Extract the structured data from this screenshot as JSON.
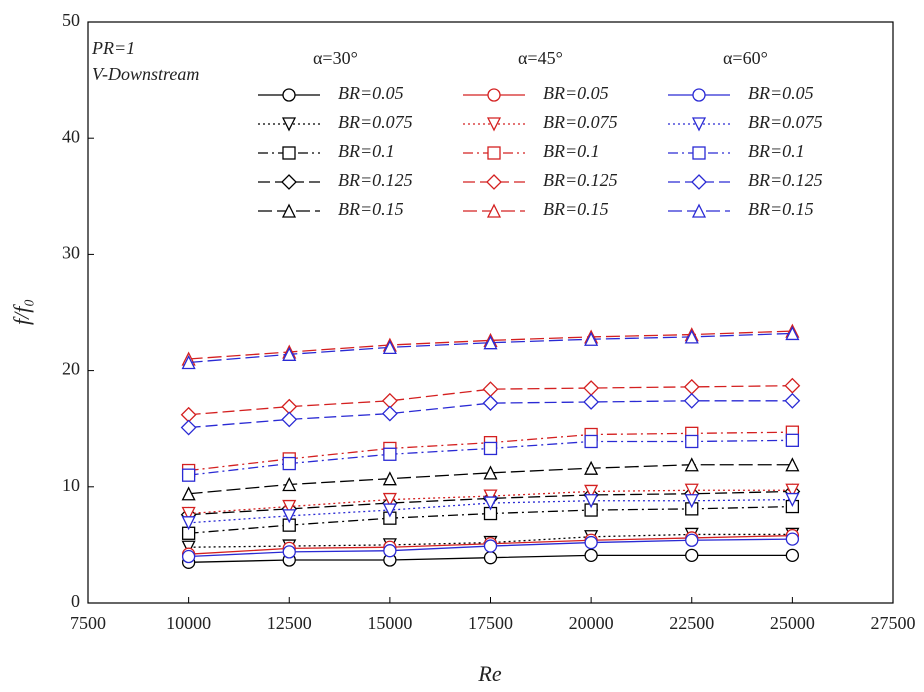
{
  "chart_data": {
    "type": "line",
    "xlabel": "Re",
    "ylabel": "f/f₀",
    "annotations": [
      "PR=1",
      "V-Downstream"
    ],
    "legend_groups": [
      "α=30°",
      "α=45°",
      "α=60°"
    ],
    "x": [
      10000,
      12500,
      15000,
      17500,
      20000,
      22500,
      25000
    ],
    "xlim": [
      7500,
      27500
    ],
    "xticks": [
      7500,
      10000,
      12500,
      15000,
      17500,
      20000,
      22500,
      25000,
      27500
    ],
    "ylim": [
      0,
      50
    ],
    "yticks": [
      0,
      10,
      20,
      30,
      40,
      50
    ],
    "series": [
      {
        "name": "BR=0.05",
        "color": "#000000",
        "values": [
          3.5,
          3.7,
          3.7,
          3.9,
          4.1,
          4.1,
          4.1
        ]
      },
      {
        "name": "BR=0.075",
        "color": "#000000",
        "values": [
          4.8,
          4.9,
          5.0,
          5.2,
          5.7,
          5.9,
          5.9
        ]
      },
      {
        "name": "BR=0.1",
        "color": "#000000",
        "values": [
          6.0,
          6.7,
          7.3,
          7.7,
          8.0,
          8.1,
          8.3
        ]
      },
      {
        "name": "BR=0.125",
        "color": "#000000",
        "values": [
          7.6,
          8.1,
          8.6,
          9.0,
          9.3,
          9.4,
          9.6
        ]
      },
      {
        "name": "BR=0.15",
        "color": "#000000",
        "values": [
          9.4,
          10.2,
          10.7,
          11.2,
          11.6,
          11.9,
          11.9
        ]
      },
      {
        "name": "BR=0.05",
        "color": "#d42020",
        "values": [
          4.2,
          4.7,
          4.8,
          5.1,
          5.4,
          5.6,
          5.8
        ]
      },
      {
        "name": "BR=0.075",
        "color": "#d42020",
        "values": [
          7.7,
          8.3,
          8.9,
          9.2,
          9.6,
          9.7,
          9.7
        ]
      },
      {
        "name": "BR=0.1",
        "color": "#d42020",
        "values": [
          11.4,
          12.4,
          13.3,
          13.8,
          14.5,
          14.6,
          14.7
        ]
      },
      {
        "name": "BR=0.125",
        "color": "#d42020",
        "values": [
          16.2,
          16.9,
          17.4,
          18.4,
          18.5,
          18.6,
          18.7
        ]
      },
      {
        "name": "BR=0.15",
        "color": "#d42020",
        "values": [
          21.0,
          21.6,
          22.2,
          22.6,
          22.9,
          23.1,
          23.4
        ]
      },
      {
        "name": "BR=0.05",
        "color": "#2a2ad4",
        "values": [
          4.0,
          4.4,
          4.5,
          4.9,
          5.2,
          5.4,
          5.5
        ]
      },
      {
        "name": "BR=0.075",
        "color": "#2a2ad4",
        "values": [
          6.9,
          7.5,
          8.0,
          8.6,
          8.8,
          8.8,
          8.9
        ]
      },
      {
        "name": "BR=0.1",
        "color": "#2a2ad4",
        "values": [
          11.0,
          12.0,
          12.8,
          13.3,
          13.9,
          13.9,
          14.0
        ]
      },
      {
        "name": "BR=0.125",
        "color": "#2a2ad4",
        "values": [
          15.1,
          15.8,
          16.3,
          17.2,
          17.3,
          17.4,
          17.4
        ]
      },
      {
        "name": "BR=0.15",
        "color": "#2a2ad4",
        "values": [
          20.7,
          21.4,
          22.0,
          22.4,
          22.7,
          22.9,
          23.2
        ]
      }
    ]
  }
}
